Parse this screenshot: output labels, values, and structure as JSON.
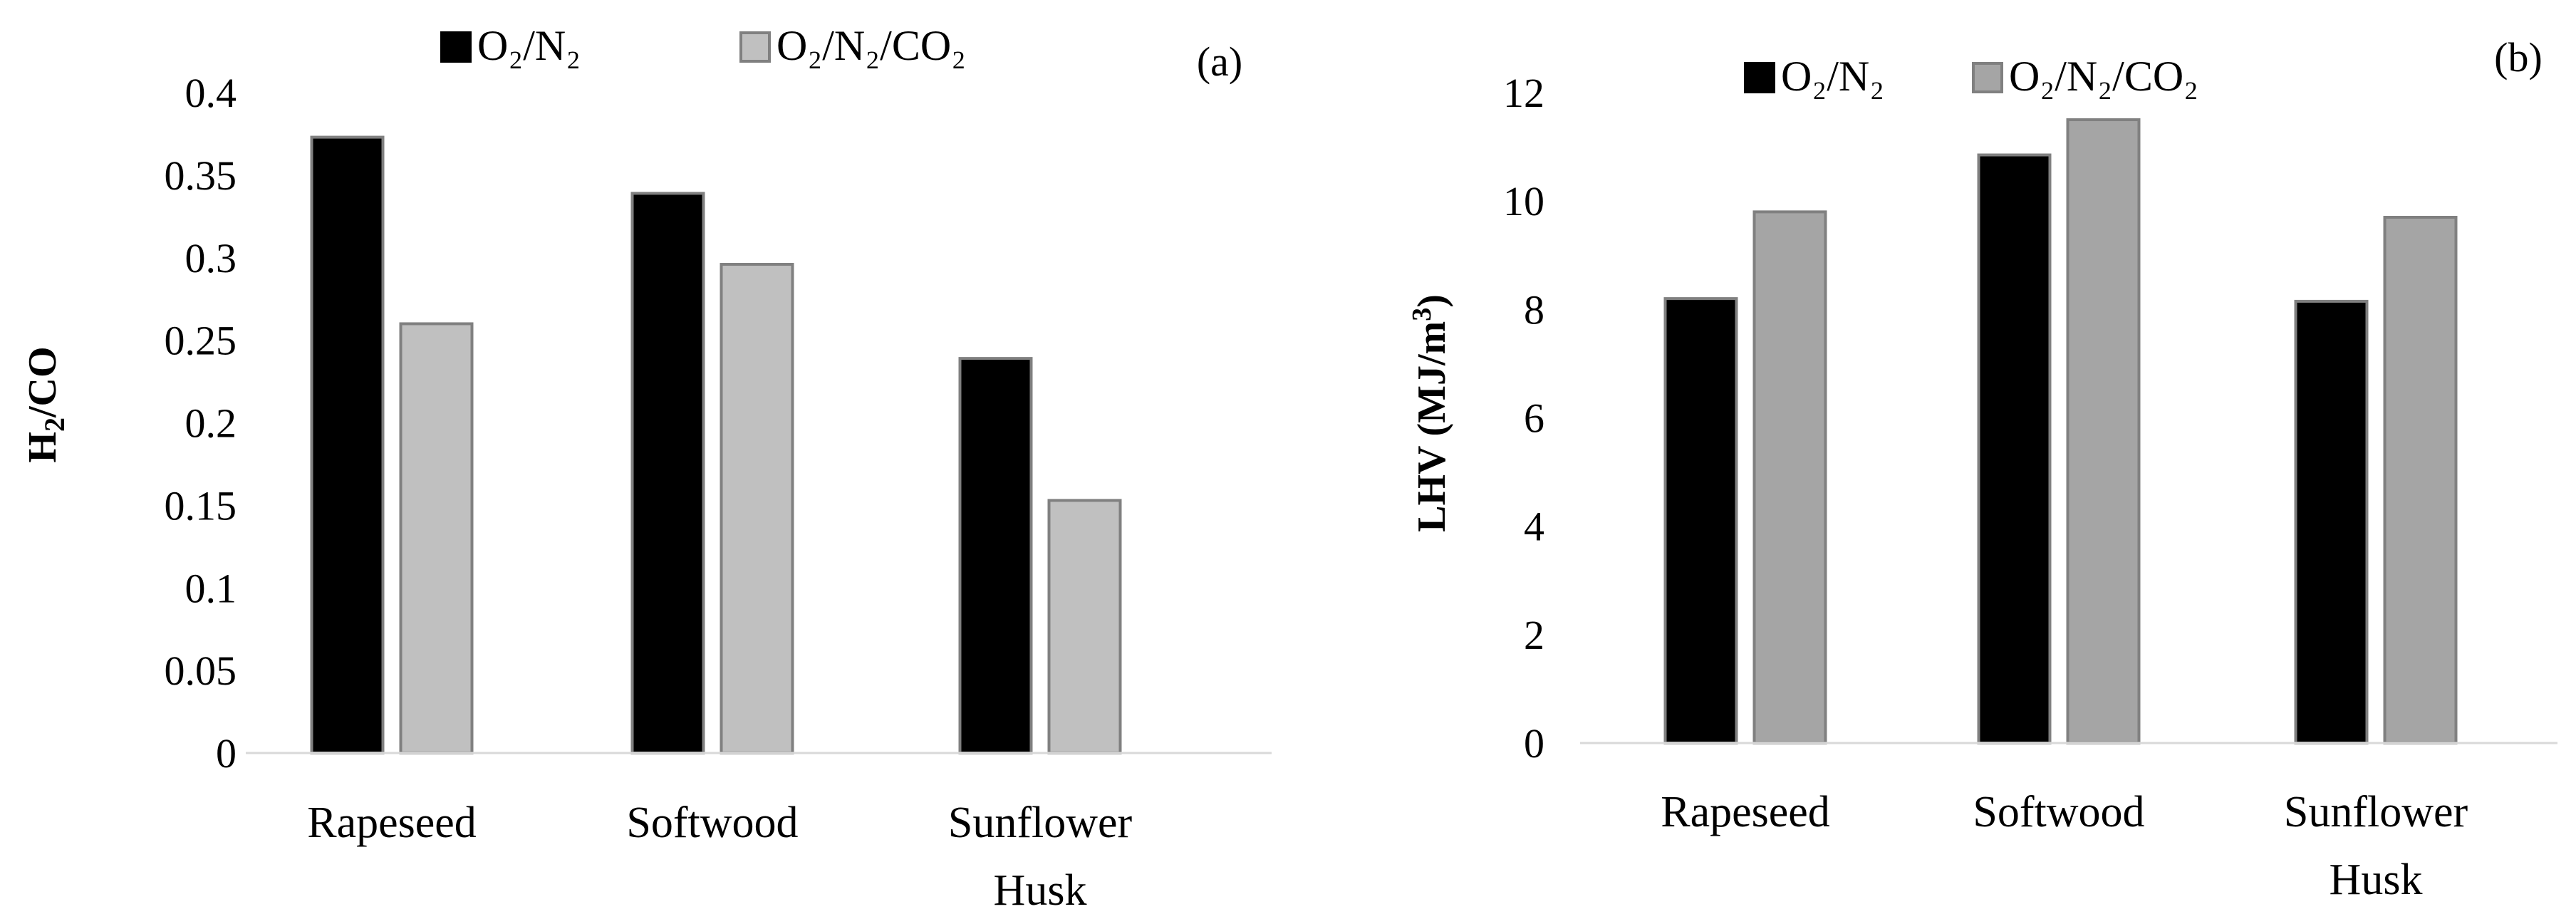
{
  "colors": {
    "series_a_1": "#000000",
    "series_a_2": "#c0c0c0",
    "series_b_1": "#000000",
    "series_b_2": "#a5a5a5",
    "bar_edge": "#808080",
    "axis": "#d9d9d9"
  },
  "chart_data": [
    {
      "type": "bar",
      "panel_label": "(a)",
      "title": "",
      "xlabel": "",
      "ylabel": "H2/CO",
      "ylabel_main": "H",
      "ylabel_sub": "2",
      "ylabel_rest": "/CO",
      "categories": [
        [
          "Rapeseed"
        ],
        [
          "Softwood"
        ],
        [
          "Sunflower",
          "Husk"
        ]
      ],
      "ylim": [
        0,
        0.4
      ],
      "yticks": [
        0,
        0.05,
        0.1,
        0.15,
        0.2,
        0.25,
        0.3,
        0.35,
        0.4
      ],
      "ytick_labels": [
        "0",
        "0.05",
        "0.1",
        "0.15",
        "0.2",
        "0.25",
        "0.3",
        "0.35",
        "0.4"
      ],
      "grid": false,
      "legend_position": "top-center",
      "series": [
        {
          "name": "O₂/N₂",
          "values": [
            0.373,
            0.339,
            0.239
          ]
        },
        {
          "name": "O₂/N₂/CO₂",
          "values": [
            0.26,
            0.296,
            0.153
          ]
        }
      ]
    },
    {
      "type": "bar",
      "panel_label": "(b)",
      "title": "",
      "xlabel": "",
      "ylabel": "LHV (MJ/m3)",
      "ylabel_main": "LHV (MJ/m",
      "ylabel_sup": "3",
      "ylabel_rest": ")",
      "categories": [
        [
          "Rapeseed"
        ],
        [
          "Softwood"
        ],
        [
          "Sunflower",
          "Husk"
        ]
      ],
      "ylim": [
        0,
        12
      ],
      "yticks": [
        0,
        2,
        4,
        6,
        8,
        10,
        12
      ],
      "ytick_labels": [
        "0",
        "2",
        "4",
        "6",
        "8",
        "10",
        "12"
      ],
      "grid": false,
      "legend_position": "top-center",
      "series": [
        {
          "name": "O₂/N₂",
          "values": [
            8.2,
            10.85,
            8.15
          ]
        },
        {
          "name": "O₂/N₂/CO₂",
          "values": [
            9.8,
            11.5,
            9.7
          ]
        }
      ]
    }
  ]
}
